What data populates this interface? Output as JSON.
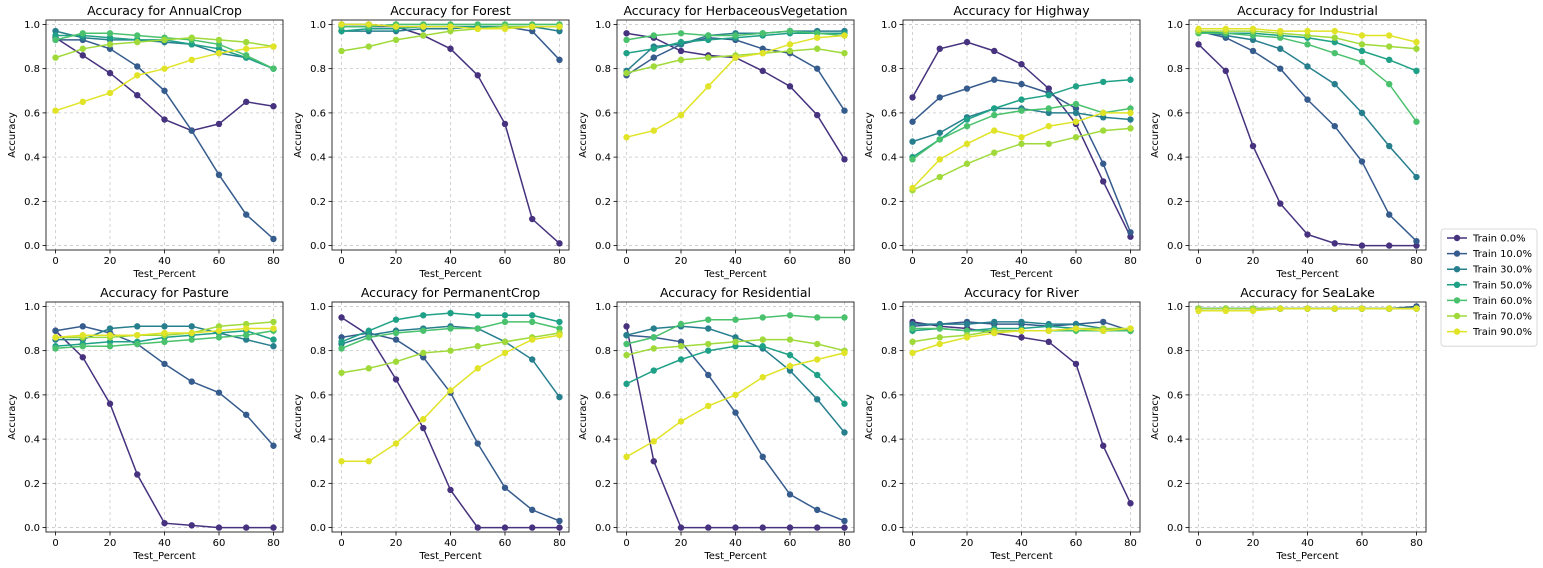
{
  "chart_data": {
    "type": "line",
    "xlabel": "Test_Percent",
    "ylabel": "Accuracy",
    "x": [
      0,
      10,
      20,
      30,
      40,
      50,
      60,
      70,
      80
    ],
    "xlim": [
      -3.5,
      83.5
    ],
    "ylim": [
      -0.02,
      1.02
    ],
    "xticks": [
      0,
      20,
      40,
      60,
      80
    ],
    "yticks": [
      0.0,
      0.2,
      0.4,
      0.6,
      0.8,
      1.0
    ],
    "grid": true,
    "legend_placement": "right",
    "series_meta": [
      {
        "name": "Train 0.0%",
        "color": "#46327e"
      },
      {
        "name": "Train 10.0%",
        "color": "#365c8d"
      },
      {
        "name": "Train 30.0%",
        "color": "#277f8e"
      },
      {
        "name": "Train 50.0%",
        "color": "#1fa187"
      },
      {
        "name": "Train 60.0%",
        "color": "#4ac16d"
      },
      {
        "name": "Train 70.0%",
        "color": "#9fda3a"
      },
      {
        "name": "Train 90.0%",
        "color": "#e0e326"
      }
    ],
    "panels": [
      {
        "title": "Accuracy for AnnualCrop",
        "series": [
          [
            0.94,
            0.86,
            0.78,
            0.68,
            0.57,
            0.52,
            0.55,
            0.65,
            0.63
          ],
          [
            0.93,
            0.93,
            0.89,
            0.81,
            0.7,
            0.52,
            0.32,
            0.14,
            0.03
          ],
          [
            0.97,
            0.94,
            0.93,
            0.93,
            0.92,
            0.91,
            0.87,
            0.85,
            0.8
          ],
          [
            0.95,
            0.95,
            0.94,
            0.93,
            0.93,
            0.91,
            0.89,
            0.85,
            0.8
          ],
          [
            0.93,
            0.96,
            0.96,
            0.95,
            0.94,
            0.93,
            0.91,
            0.86,
            0.8
          ],
          [
            0.85,
            0.89,
            0.91,
            0.92,
            0.93,
            0.94,
            0.93,
            0.92,
            0.9
          ],
          [
            0.61,
            0.65,
            0.69,
            0.77,
            0.8,
            0.84,
            0.87,
            0.89,
            0.9
          ]
        ]
      },
      {
        "title": "Accuracy for Forest",
        "series": [
          [
            1.0,
            1.0,
            0.99,
            0.95,
            0.89,
            0.77,
            0.55,
            0.12,
            0.01
          ],
          [
            0.99,
            0.99,
            0.99,
            0.99,
            0.99,
            0.99,
            0.99,
            0.97,
            0.84
          ],
          [
            0.97,
            0.97,
            0.97,
            0.98,
            0.98,
            0.99,
            0.99,
            0.99,
            0.97
          ],
          [
            0.97,
            0.98,
            0.98,
            0.99,
            0.99,
            0.99,
            0.99,
            0.99,
            0.99
          ],
          [
            0.99,
            0.99,
            1.0,
            1.0,
            1.0,
            1.0,
            1.0,
            1.0,
            1.0
          ],
          [
            0.88,
            0.9,
            0.93,
            0.95,
            0.97,
            0.98,
            0.99,
            0.99,
            0.99
          ],
          [
            1.0,
            1.0,
            0.99,
            0.99,
            0.99,
            0.98,
            0.98,
            0.99,
            0.99
          ]
        ]
      },
      {
        "title": "Accuracy for HerbaceousVegetation",
        "series": [
          [
            0.96,
            0.94,
            0.88,
            0.86,
            0.85,
            0.79,
            0.72,
            0.59,
            0.39
          ],
          [
            0.77,
            0.85,
            0.91,
            0.94,
            0.93,
            0.89,
            0.87,
            0.8,
            0.61
          ],
          [
            0.79,
            0.9,
            0.91,
            0.95,
            0.96,
            0.96,
            0.97,
            0.97,
            0.97
          ],
          [
            0.87,
            0.89,
            0.92,
            0.93,
            0.94,
            0.95,
            0.96,
            0.96,
            0.96
          ],
          [
            0.93,
            0.95,
            0.96,
            0.95,
            0.95,
            0.96,
            0.97,
            0.96,
            0.95
          ],
          [
            0.78,
            0.81,
            0.84,
            0.85,
            0.86,
            0.87,
            0.88,
            0.89,
            0.87
          ],
          [
            0.49,
            0.52,
            0.59,
            0.72,
            0.85,
            0.87,
            0.91,
            0.94,
            0.95
          ]
        ]
      },
      {
        "title": "Accuracy for Highway",
        "series": [
          [
            0.67,
            0.89,
            0.92,
            0.88,
            0.82,
            0.71,
            0.55,
            0.29,
            0.04
          ],
          [
            0.56,
            0.67,
            0.71,
            0.75,
            0.73,
            0.69,
            0.62,
            0.37,
            0.06
          ],
          [
            0.47,
            0.51,
            0.58,
            0.62,
            0.62,
            0.6,
            0.6,
            0.58,
            0.57
          ],
          [
            0.4,
            0.48,
            0.57,
            0.62,
            0.66,
            0.68,
            0.72,
            0.74,
            0.75
          ],
          [
            0.39,
            0.48,
            0.54,
            0.59,
            0.61,
            0.62,
            0.64,
            0.6,
            0.62
          ],
          [
            0.25,
            0.31,
            0.37,
            0.42,
            0.46,
            0.46,
            0.49,
            0.52,
            0.53
          ],
          [
            0.26,
            0.39,
            0.46,
            0.52,
            0.49,
            0.54,
            0.56,
            0.6,
            0.6
          ]
        ]
      },
      {
        "title": "Accuracy for Industrial",
        "series": [
          [
            0.91,
            0.79,
            0.45,
            0.19,
            0.05,
            0.01,
            0.0,
            0.0,
            0.0
          ],
          [
            0.97,
            0.94,
            0.88,
            0.8,
            0.66,
            0.54,
            0.38,
            0.14,
            0.02
          ],
          [
            0.97,
            0.95,
            0.93,
            0.89,
            0.81,
            0.73,
            0.6,
            0.45,
            0.31
          ],
          [
            0.97,
            0.96,
            0.96,
            0.95,
            0.94,
            0.92,
            0.88,
            0.84,
            0.79
          ],
          [
            0.96,
            0.96,
            0.95,
            0.94,
            0.91,
            0.87,
            0.83,
            0.73,
            0.56
          ],
          [
            0.97,
            0.97,
            0.97,
            0.96,
            0.95,
            0.94,
            0.91,
            0.9,
            0.89
          ],
          [
            0.98,
            0.98,
            0.98,
            0.97,
            0.97,
            0.97,
            0.95,
            0.95,
            0.92
          ]
        ]
      },
      {
        "title": "Accuracy for Pasture",
        "series": [
          [
            0.89,
            0.77,
            0.56,
            0.24,
            0.02,
            0.01,
            0.0,
            0.0,
            0.0
          ],
          [
            0.89,
            0.91,
            0.88,
            0.83,
            0.74,
            0.66,
            0.61,
            0.51,
            0.37
          ],
          [
            0.85,
            0.85,
            0.9,
            0.91,
            0.91,
            0.91,
            0.88,
            0.85,
            0.82
          ],
          [
            0.82,
            0.83,
            0.84,
            0.84,
            0.86,
            0.87,
            0.88,
            0.89,
            0.85
          ],
          [
            0.81,
            0.82,
            0.82,
            0.83,
            0.84,
            0.85,
            0.86,
            0.87,
            0.89
          ],
          [
            0.86,
            0.86,
            0.86,
            0.87,
            0.87,
            0.88,
            0.91,
            0.92,
            0.93
          ],
          [
            0.86,
            0.87,
            0.87,
            0.87,
            0.88,
            0.88,
            0.89,
            0.9,
            0.9
          ]
        ]
      },
      {
        "title": "Accuracy for PermanentCrop",
        "series": [
          [
            0.95,
            0.87,
            0.67,
            0.45,
            0.17,
            0.0,
            0.0,
            0.0,
            0.0
          ],
          [
            0.86,
            0.88,
            0.85,
            0.77,
            0.61,
            0.38,
            0.18,
            0.08,
            0.03
          ],
          [
            0.83,
            0.87,
            0.89,
            0.9,
            0.91,
            0.9,
            0.84,
            0.76,
            0.59
          ],
          [
            0.84,
            0.89,
            0.94,
            0.96,
            0.97,
            0.96,
            0.96,
            0.96,
            0.93
          ],
          [
            0.81,
            0.86,
            0.88,
            0.89,
            0.9,
            0.9,
            0.93,
            0.93,
            0.9
          ],
          [
            0.7,
            0.72,
            0.75,
            0.79,
            0.8,
            0.82,
            0.84,
            0.86,
            0.88
          ],
          [
            0.3,
            0.3,
            0.38,
            0.49,
            0.62,
            0.72,
            0.79,
            0.85,
            0.87
          ]
        ]
      },
      {
        "title": "Accuracy for Residential",
        "series": [
          [
            0.91,
            0.3,
            0.0,
            0.0,
            0.0,
            0.0,
            0.0,
            0.0,
            0.0
          ],
          [
            0.87,
            0.86,
            0.84,
            0.69,
            0.52,
            0.32,
            0.15,
            0.08,
            0.03
          ],
          [
            0.87,
            0.9,
            0.91,
            0.9,
            0.86,
            0.81,
            0.71,
            0.58,
            0.43
          ],
          [
            0.65,
            0.71,
            0.76,
            0.8,
            0.82,
            0.82,
            0.78,
            0.69,
            0.56
          ],
          [
            0.83,
            0.86,
            0.92,
            0.94,
            0.94,
            0.95,
            0.96,
            0.95,
            0.95
          ],
          [
            0.78,
            0.81,
            0.82,
            0.83,
            0.84,
            0.85,
            0.85,
            0.83,
            0.8
          ],
          [
            0.32,
            0.39,
            0.48,
            0.55,
            0.6,
            0.68,
            0.73,
            0.76,
            0.79
          ]
        ]
      },
      {
        "title": "Accuracy for River",
        "series": [
          [
            0.93,
            0.91,
            0.9,
            0.88,
            0.86,
            0.84,
            0.74,
            0.37,
            0.11
          ],
          [
            0.91,
            0.92,
            0.93,
            0.92,
            0.92,
            0.91,
            0.92,
            0.93,
            0.89
          ],
          [
            0.92,
            0.92,
            0.92,
            0.93,
            0.93,
            0.92,
            0.92,
            0.9,
            0.89
          ],
          [
            0.89,
            0.9,
            0.89,
            0.9,
            0.9,
            0.91,
            0.9,
            0.89,
            0.89
          ],
          [
            0.9,
            0.9,
            0.89,
            0.89,
            0.89,
            0.89,
            0.89,
            0.89,
            0.89
          ],
          [
            0.84,
            0.86,
            0.87,
            0.89,
            0.89,
            0.89,
            0.9,
            0.9,
            0.9
          ],
          [
            0.79,
            0.83,
            0.86,
            0.88,
            0.89,
            0.89,
            0.9,
            0.89,
            0.9
          ]
        ]
      },
      {
        "title": "Accuracy for SeaLake",
        "series": [
          [
            0.99,
            0.99,
            0.99,
            0.99,
            0.99,
            0.99,
            0.99,
            0.99,
            0.99
          ],
          [
            0.99,
            0.99,
            0.99,
            0.99,
            0.99,
            0.99,
            0.99,
            0.99,
            1.0
          ],
          [
            0.99,
            0.99,
            0.99,
            0.99,
            0.99,
            0.99,
            0.99,
            0.99,
            0.99
          ],
          [
            0.99,
            0.99,
            0.99,
            0.99,
            0.99,
            0.99,
            0.99,
            0.99,
            0.99
          ],
          [
            0.99,
            0.99,
            0.99,
            0.99,
            0.99,
            0.99,
            0.99,
            0.99,
            0.99
          ],
          [
            0.99,
            0.99,
            0.99,
            0.99,
            0.99,
            0.99,
            0.99,
            0.99,
            0.99
          ],
          [
            0.98,
            0.98,
            0.98,
            0.99,
            0.99,
            0.99,
            0.99,
            0.99,
            0.99
          ]
        ]
      }
    ]
  }
}
